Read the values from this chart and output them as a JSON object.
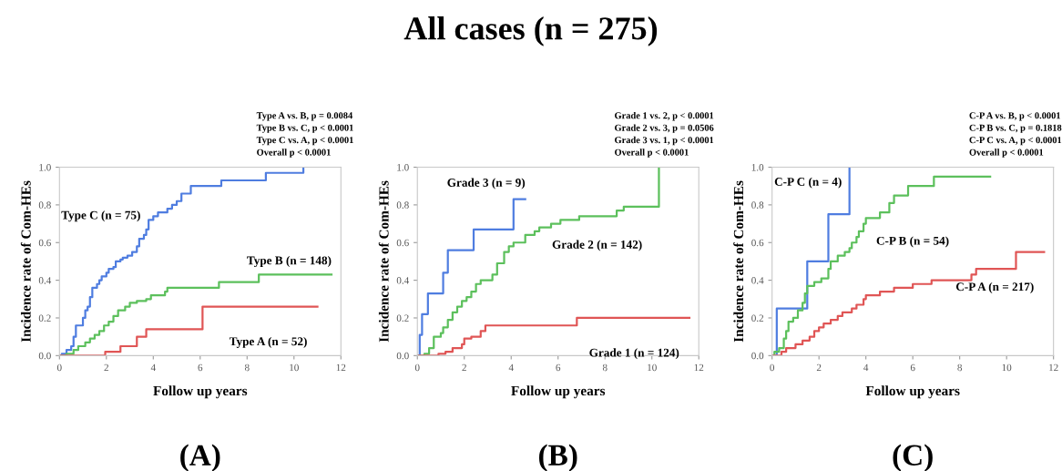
{
  "chart_data": [
    {
      "type": "step",
      "xlabel": "Follow up years",
      "ylabel": "Incidence rate of Com-HEs",
      "xlim": [
        0,
        12
      ],
      "ylim": [
        0,
        1.0
      ],
      "xticks": [
        0,
        2,
        4,
        6,
        8,
        10,
        12
      ],
      "yticks": [
        {
          "value": 0,
          "label": "0.0"
        },
        {
          "value": 0.2,
          "label": "0.2"
        },
        {
          "value": 0.4,
          "label": "0.4"
        },
        {
          "value": 0.6,
          "label": "0.6"
        },
        {
          "value": 0.8,
          "label": "0.8"
        },
        {
          "value": 1.0,
          "label": "1.0"
        }
      ],
      "grid": false,
      "annotations": [
        "Type A vs. B, p = 0.0084",
        "Type B vs. C, p < 0.0001",
        "Type C vs. A, p < 0.0001",
        "Overall p < 0.0001",
        "(A)"
      ],
      "series": [
        {
          "name": "Type C (n = 75)",
          "color": "#4f7de0",
          "x": [
            0,
            0.1,
            0.3,
            0.5,
            0.6,
            0.7,
            0.9,
            1.0,
            1.1,
            1.2,
            1.3,
            1.4,
            1.6,
            1.7,
            1.8,
            2.0,
            2.1,
            2.3,
            2.4,
            2.6,
            2.7,
            2.9,
            3.1,
            3.3,
            3.4,
            3.6,
            3.7,
            3.8,
            4.0,
            4.2,
            4.6,
            4.8,
            5.0,
            5.2,
            5.6,
            6.9,
            8.8,
            10.4
          ],
          "values": [
            0,
            0.01,
            0.03,
            0.05,
            0.1,
            0.16,
            0.16,
            0.2,
            0.24,
            0.26,
            0.31,
            0.36,
            0.38,
            0.4,
            0.42,
            0.44,
            0.46,
            0.47,
            0.5,
            0.51,
            0.52,
            0.53,
            0.55,
            0.58,
            0.62,
            0.64,
            0.67,
            0.72,
            0.74,
            0.76,
            0.78,
            0.8,
            0.82,
            0.86,
            0.9,
            0.93,
            0.97,
            1.0
          ]
        },
        {
          "name": "Type B (n = 148)",
          "color": "#5cc05c",
          "x": [
            0,
            0.3,
            0.6,
            0.8,
            1.1,
            1.3,
            1.5,
            1.7,
            1.9,
            2.1,
            2.3,
            2.5,
            2.8,
            3.0,
            3.3,
            3.7,
            3.9,
            4.5,
            4.6,
            6.8,
            8.5,
            11.6
          ],
          "values": [
            0,
            0.01,
            0.03,
            0.05,
            0.07,
            0.09,
            0.11,
            0.13,
            0.16,
            0.18,
            0.21,
            0.24,
            0.26,
            0.28,
            0.29,
            0.3,
            0.32,
            0.34,
            0.36,
            0.39,
            0.43,
            0.43
          ]
        },
        {
          "name": "Type A (n = 52)",
          "color": "#e05555",
          "x": [
            0,
            1.95,
            2.6,
            3.3,
            3.7,
            6.1,
            11.0
          ],
          "values": [
            0,
            0.02,
            0.05,
            0.1,
            0.14,
            0.26,
            0.26
          ]
        }
      ]
    },
    {
      "type": "step",
      "title": "All cases (n = 275)",
      "xlabel": "Follow up years",
      "ylabel": "Incidence rate of Com-HEs",
      "xlim": [
        0,
        12
      ],
      "ylim": [
        0,
        1.0
      ],
      "xticks": [
        0,
        2,
        4,
        6,
        8,
        10,
        12
      ],
      "yticks": [
        {
          "value": 0,
          "label": "0.0"
        },
        {
          "value": 0.2,
          "label": "0.2"
        },
        {
          "value": 0.4,
          "label": "0.4"
        },
        {
          "value": 0.6,
          "label": "0.6"
        },
        {
          "value": 0.8,
          "label": "0.8"
        },
        {
          "value": 1.0,
          "label": "1.0"
        }
      ],
      "grid": false,
      "annotations": [
        "Grade 1 vs. 2, p < 0.0001",
        "Grade 2 vs. 3, p = 0.0506",
        "Grade 3 vs. 1, p < 0.0001",
        "Overall p < 0.0001",
        "(B)"
      ],
      "series": [
        {
          "name": "Grade 3 (n = 9)",
          "color": "#4f7de0",
          "x": [
            0,
            0.1,
            0.2,
            0.45,
            1.1,
            1.3,
            2.4,
            4.1,
            4.6
          ],
          "values": [
            0,
            0.11,
            0.22,
            0.33,
            0.44,
            0.56,
            0.67,
            0.83,
            0.83
          ]
        },
        {
          "name": "Grade 2 (n = 142)",
          "color": "#5cc05c",
          "x": [
            0,
            0.3,
            0.5,
            0.7,
            1.0,
            1.1,
            1.3,
            1.5,
            1.7,
            1.9,
            2.1,
            2.3,
            2.5,
            2.7,
            3.2,
            3.4,
            3.7,
            3.9,
            4.1,
            4.6,
            5.0,
            5.2,
            5.7,
            6.1,
            6.9,
            8.5,
            8.8,
            10.3
          ],
          "values": [
            0,
            0.01,
            0.04,
            0.1,
            0.12,
            0.15,
            0.19,
            0.23,
            0.26,
            0.29,
            0.31,
            0.34,
            0.38,
            0.4,
            0.43,
            0.49,
            0.55,
            0.58,
            0.6,
            0.64,
            0.66,
            0.68,
            0.7,
            0.72,
            0.74,
            0.77,
            0.79,
            1.0
          ]
        },
        {
          "name": "Grade 1 (n = 124)",
          "color": "#e05555",
          "x": [
            0,
            0.9,
            1.2,
            1.5,
            1.9,
            2.0,
            2.3,
            2.7,
            2.9,
            6.8,
            11.6
          ],
          "values": [
            0,
            0.01,
            0.02,
            0.04,
            0.06,
            0.09,
            0.1,
            0.13,
            0.16,
            0.2,
            0.2
          ]
        }
      ]
    },
    {
      "type": "step",
      "xlabel": "Follow up years",
      "ylabel": "Incidence rate of Com-HEs",
      "xlim": [
        0,
        12
      ],
      "ylim": [
        0,
        1.0
      ],
      "xticks": [
        0,
        2,
        4,
        6,
        8,
        10,
        12
      ],
      "yticks": [
        {
          "value": 0,
          "label": "0.0"
        },
        {
          "value": 0.2,
          "label": "0.2"
        },
        {
          "value": 0.4,
          "label": "0.4"
        },
        {
          "value": 0.6,
          "label": "0.6"
        },
        {
          "value": 0.8,
          "label": "0.8"
        },
        {
          "value": 1.0,
          "label": "1.0"
        }
      ],
      "grid": false,
      "annotations": [
        "C-P A vs. B, p < 0.0001",
        "C-P B vs. C, p = 0.1818",
        "C-P C vs. A, p < 0.0001",
        "Overall p < 0.0001",
        "(C)"
      ],
      "series": [
        {
          "name": "C-P C (n = 4)",
          "color": "#4f7de0",
          "x": [
            0,
            0.2,
            1.5,
            2.4,
            3.3
          ],
          "values": [
            0,
            0.25,
            0.5,
            0.75,
            1.0
          ]
        },
        {
          "name": "C-P B (n = 54)",
          "color": "#5cc05c",
          "x": [
            0,
            0.1,
            0.3,
            0.5,
            0.6,
            0.7,
            0.9,
            1.1,
            1.3,
            1.4,
            1.5,
            1.8,
            2.1,
            2.4,
            2.5,
            2.8,
            3.1,
            3.3,
            3.4,
            3.6,
            3.7,
            3.9,
            4.0,
            4.6,
            5.0,
            5.2,
            5.8,
            6.9,
            9.3
          ],
          "values": [
            0,
            0.02,
            0.04,
            0.09,
            0.13,
            0.18,
            0.2,
            0.24,
            0.28,
            0.33,
            0.37,
            0.39,
            0.41,
            0.46,
            0.5,
            0.53,
            0.55,
            0.57,
            0.6,
            0.63,
            0.66,
            0.7,
            0.73,
            0.76,
            0.81,
            0.85,
            0.9,
            0.95,
            0.95
          ]
        },
        {
          "name": "C-P A (n = 217)",
          "color": "#e05555",
          "x": [
            0,
            0.4,
            0.6,
            1.0,
            1.3,
            1.6,
            1.8,
            2.0,
            2.2,
            2.5,
            2.8,
            3.0,
            3.4,
            3.6,
            3.9,
            4.0,
            4.6,
            5.2,
            6.0,
            6.8,
            8.5,
            8.7,
            10.4,
            11.6
          ],
          "values": [
            0,
            0.02,
            0.04,
            0.06,
            0.08,
            0.1,
            0.13,
            0.15,
            0.17,
            0.19,
            0.21,
            0.23,
            0.25,
            0.27,
            0.3,
            0.32,
            0.34,
            0.36,
            0.38,
            0.4,
            0.43,
            0.46,
            0.55,
            0.55
          ]
        }
      ]
    }
  ]
}
